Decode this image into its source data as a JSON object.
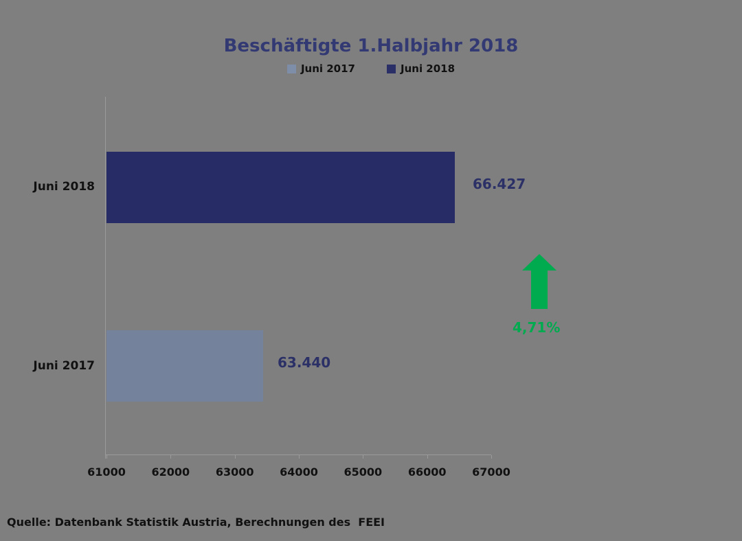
{
  "title": "Beschäftigte 1.Halbjahr 2018",
  "legend": {
    "items": [
      {
        "label": "Juni 2017",
        "color": "#7E8EA9"
      },
      {
        "label": "Juni 2018",
        "color": "#2B2F68"
      }
    ]
  },
  "chart_data": {
    "type": "bar",
    "orientation": "horizontal",
    "title": "Beschäftigte 1.Halbjahr 2018",
    "categories": [
      "Juni 2018",
      "Juni 2017"
    ],
    "series": [
      {
        "name": "Juni 2018",
        "value": 66427,
        "value_label": "66.427",
        "color": "#282C66"
      },
      {
        "name": "Juni 2017",
        "value": 63440,
        "value_label": "63.440",
        "color": "#74839B"
      }
    ],
    "xlim": [
      61000,
      67000
    ],
    "x_ticks": [
      "61000",
      "62000",
      "63000",
      "64000",
      "65000",
      "66000",
      "67000"
    ],
    "grid": false,
    "legend_position": "top",
    "annotation": {
      "text": "4,71%",
      "shape": "up-arrow",
      "color": "#00AB50"
    }
  },
  "source_note": "Quelle: Datenbank Statistik Austria, Berechnungen des  FEEI",
  "colors": {
    "background": "#7F7F7F",
    "title": "#333A73",
    "value_label": "#2B3066",
    "axis": "#9B9B9B",
    "text": "#111111",
    "positive": "#00AB50"
  }
}
